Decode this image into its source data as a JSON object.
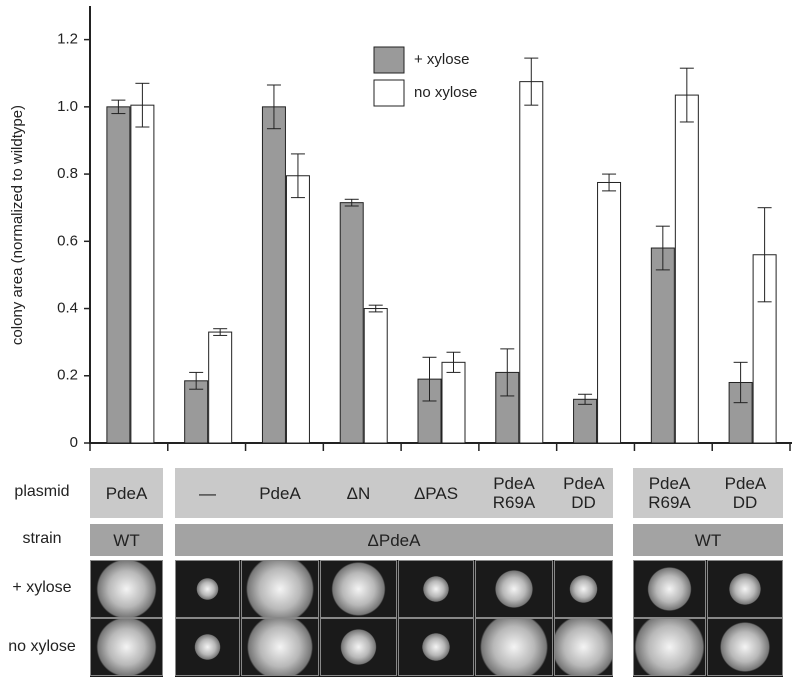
{
  "chart_data": {
    "type": "bar",
    "y_label": "colony area (normalized to wildtype)",
    "categories": [
      "PdeA",
      "—",
      "PdeA",
      "ΔN",
      "ΔPAS",
      "PdeA R69A",
      "PdeA DD",
      "PdeA R69A",
      "PdeA DD"
    ],
    "series": [
      {
        "name": "+ xylose",
        "color": "#9a9a9a",
        "values": [
          1.0,
          0.185,
          1.0,
          0.715,
          0.19,
          0.21,
          0.13,
          0.58,
          0.18
        ],
        "errors": [
          0.02,
          0.025,
          0.065,
          0.01,
          0.065,
          0.07,
          0.015,
          0.065,
          0.06
        ]
      },
      {
        "name": "no xylose",
        "color": "#ffffff",
        "values": [
          1.005,
          0.33,
          0.795,
          0.4,
          0.24,
          1.075,
          0.775,
          1.035,
          0.56
        ],
        "errors": [
          0.065,
          0.01,
          0.065,
          0.01,
          0.03,
          0.07,
          0.025,
          0.08,
          0.14
        ]
      }
    ],
    "ylim": [
      0,
      1.3
    ],
    "yticks": [
      0,
      0.2,
      0.4,
      0.6,
      0.8,
      {
        "value": 1,
        "label": "1.0"
      },
      1.2
    ]
  },
  "table": {
    "row_labels": [
      "plasmid",
      "strain",
      "+ xylose",
      "no xylose"
    ],
    "strains": [
      "WT",
      "ΔPdeA",
      "WT"
    ]
  }
}
